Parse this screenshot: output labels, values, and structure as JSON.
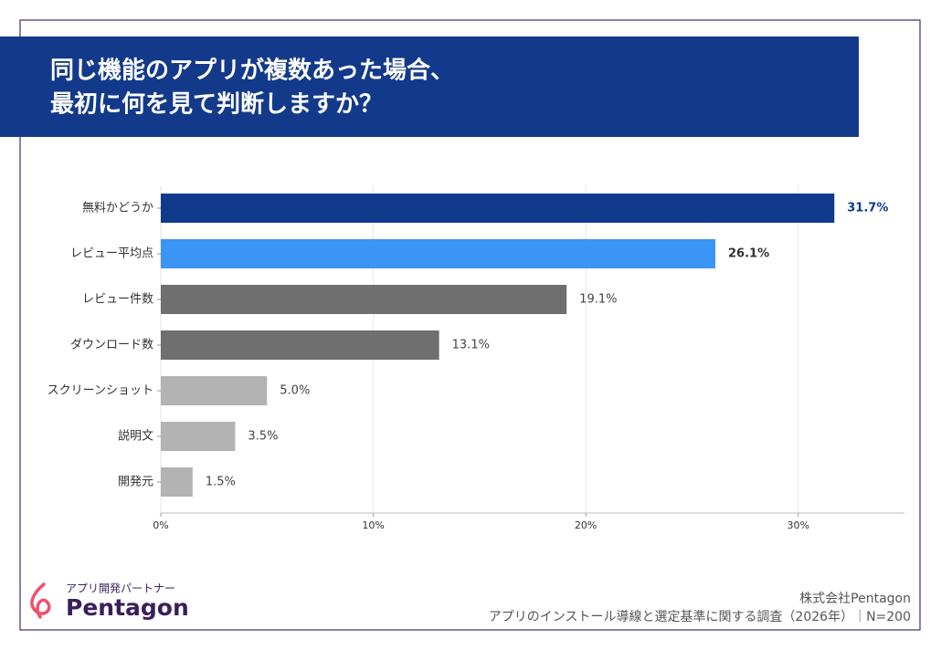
{
  "chart_data": {
    "type": "bar",
    "orientation": "horizontal",
    "title": [
      "同じ機能のアプリが複数あった場合、",
      "最初に何を見て判断しますか？"
    ],
    "categories": [
      "無料かどうか",
      "レビュー平均点",
      "レビュー件数",
      "ダウンロード数",
      "スクリーンショット",
      "説明文",
      "開発元"
    ],
    "values": [
      31.7,
      26.1,
      19.1,
      13.1,
      5.0,
      3.5,
      1.5
    ],
    "value_labels": [
      "31.7%",
      "26.1%",
      "19.1%",
      "13.1%",
      "5.0%",
      "3.5%",
      "1.5%"
    ],
    "colors": [
      "#0f3a8c",
      "#3a95f5",
      "#6f6f6f",
      "#6f6f6f",
      "#b3b3b3",
      "#b3b3b3",
      "#b3b3b3"
    ],
    "value_label_colors": [
      "#0f3a8c",
      "#333333",
      "#444444",
      "#444444",
      "#444444",
      "#444444",
      "#444444"
    ],
    "value_label_weights": [
      "bold",
      "bold",
      "normal",
      "normal",
      "normal",
      "normal",
      "normal"
    ],
    "xlim": [
      0,
      35
    ],
    "xticks": [
      {
        "value": 0,
        "label": "0%"
      },
      {
        "value": 10,
        "label": "10%"
      },
      {
        "value": 20,
        "label": "20%"
      },
      {
        "value": 30,
        "label": "30%"
      }
    ],
    "grid": true
  },
  "footer": {
    "brand_tagline": "アプリ開発パートナー",
    "brand_name": "Pentagon",
    "company": "株式会社Pentagon",
    "source": "アプリのインストール導線と選定基準に関する調査（2026年）｜N=200"
  }
}
